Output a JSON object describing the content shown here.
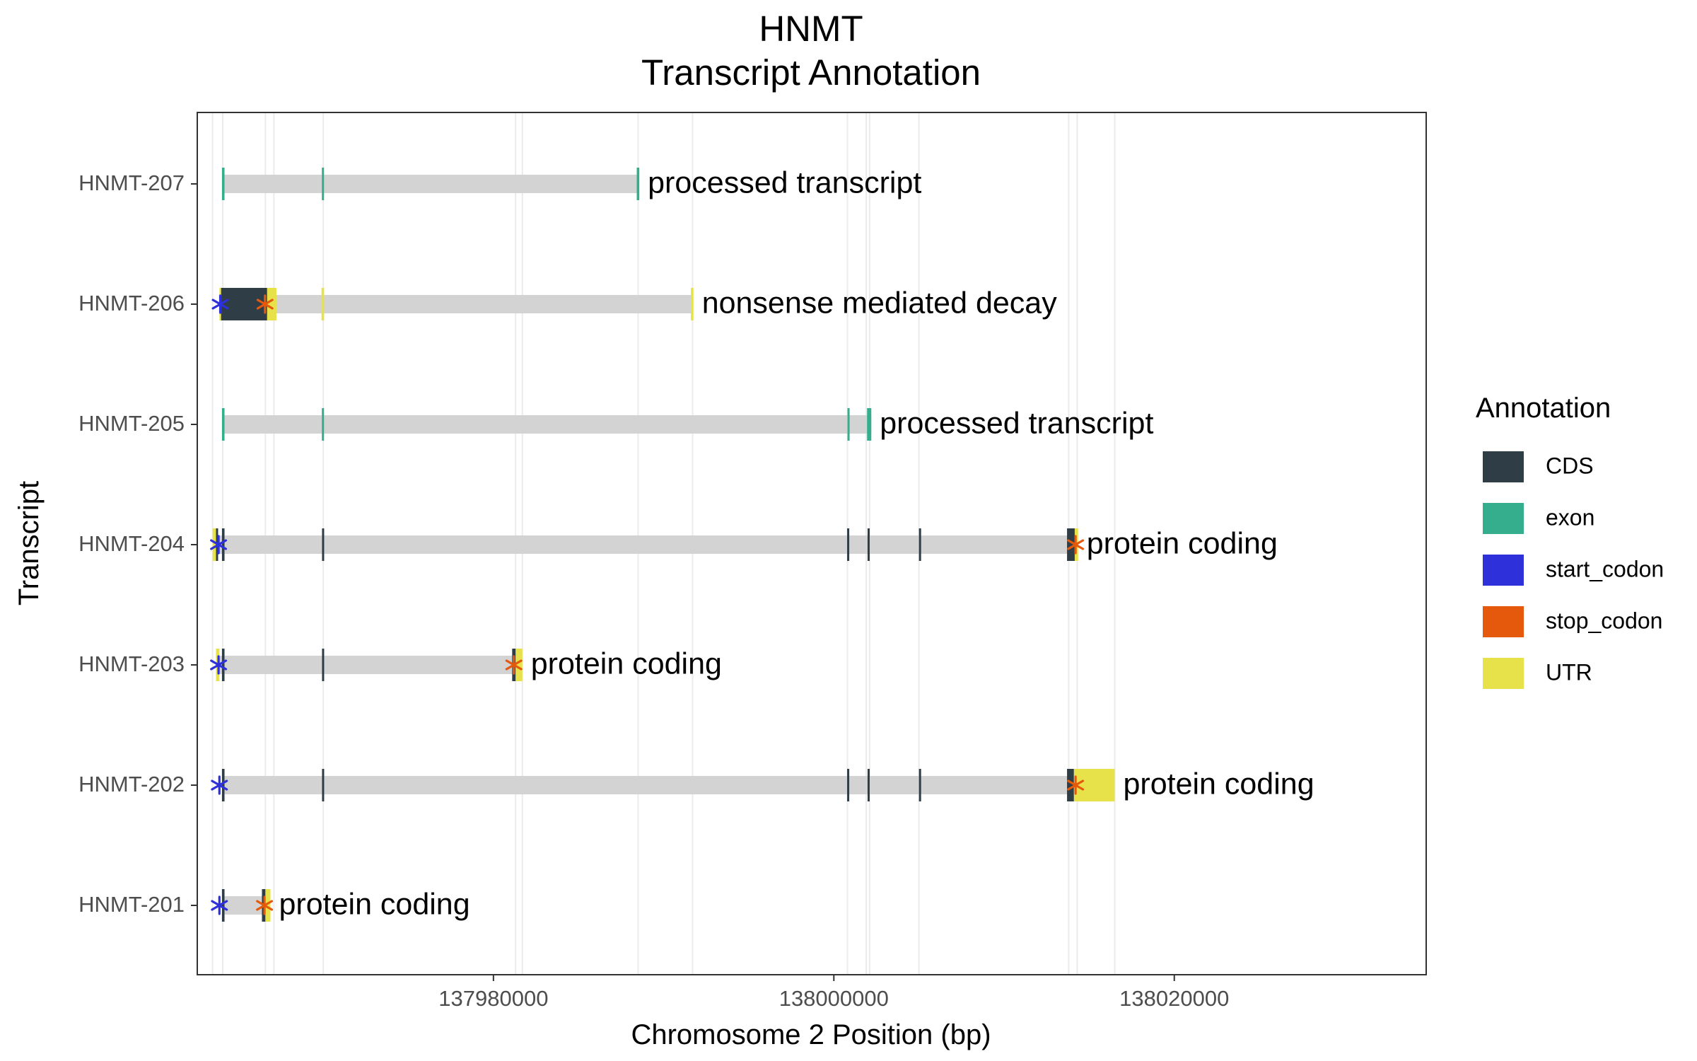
{
  "chart_data": {
    "type": "gene-track",
    "title": [
      "HNMT",
      "Transcript Annotation"
    ],
    "xlabel": "Chromosome 2 Position (bp)",
    "ylabel": "Transcript",
    "xlim": [
      137962600,
      138034800
    ],
    "x_ticks": [
      137980000,
      138000000,
      138020000
    ],
    "x_tick_labels": [
      "137980000",
      "138000000",
      "138020000"
    ],
    "legend": {
      "title": "Annotation",
      "position": "right",
      "items": [
        {
          "label": "CDS",
          "color": "#2F3D46"
        },
        {
          "label": "exon",
          "color": "#35AE8D"
        },
        {
          "label": "start_codon",
          "color": "#2E30DA"
        },
        {
          "label": "stop_codon",
          "color": "#E5590D"
        },
        {
          "label": "UTR",
          "color": "#E8E24A"
        }
      ]
    },
    "colors": {
      "CDS": "#2F3D46",
      "exon": "#35AE8D",
      "start_codon": "#2E30DA",
      "stop_codon": "#E5590D",
      "UTR": "#E8E24A",
      "intron": "#D3D3D3",
      "guide": "#EBEBEB"
    },
    "guides": [
      137963500,
      137964100,
      137966600,
      137967100,
      137970000,
      137988500,
      137991700,
      137981300,
      137981700,
      138000800,
      138001900,
      138002100,
      138005000,
      138013800,
      138014300,
      138016500
    ],
    "transcripts": [
      {
        "name": "HNMT-207",
        "biotype": "processed transcript",
        "start": 137964100,
        "end": 137988500,
        "features": [
          {
            "type": "exon",
            "start": 137964050,
            "end": 137964200
          },
          {
            "type": "exon",
            "start": 137969920,
            "end": 137970000
          },
          {
            "type": "exon",
            "start": 137988420,
            "end": 137988570
          }
        ]
      },
      {
        "name": "HNMT-206",
        "biotype": "nonsense mediated decay",
        "start": 137964100,
        "end": 137991700,
        "features": [
          {
            "type": "UTR",
            "start": 137963900,
            "end": 137964000
          },
          {
            "type": "CDS",
            "start": 137964000,
            "end": 137966700
          },
          {
            "type": "UTR",
            "start": 137966700,
            "end": 137967250
          },
          {
            "type": "UTR",
            "start": 137969900,
            "end": 137970050
          },
          {
            "type": "UTR",
            "start": 137991600,
            "end": 137991750
          },
          {
            "type": "start_codon",
            "start": 137963950,
            "end": 137963950
          },
          {
            "type": "stop_codon",
            "start": 137966580,
            "end": 137966580
          }
        ]
      },
      {
        "name": "HNMT-205",
        "biotype": "processed transcript",
        "start": 137964100,
        "end": 138002200,
        "features": [
          {
            "type": "exon",
            "start": 137964050,
            "end": 137964200
          },
          {
            "type": "exon",
            "start": 137969920,
            "end": 137970000
          },
          {
            "type": "exon",
            "start": 138000800,
            "end": 138000880
          },
          {
            "type": "exon",
            "start": 138001950,
            "end": 138002200
          }
        ]
      },
      {
        "name": "HNMT-204",
        "biotype": "protein coding",
        "start": 137963600,
        "end": 138014000,
        "features": [
          {
            "type": "UTR",
            "start": 137963500,
            "end": 137963700
          },
          {
            "type": "CDS",
            "start": 137963700,
            "end": 137963800
          },
          {
            "type": "CDS",
            "start": 137964050,
            "end": 137964200
          },
          {
            "type": "CDS",
            "start": 137969930,
            "end": 137970030
          },
          {
            "type": "CDS",
            "start": 138000780,
            "end": 138000880
          },
          {
            "type": "CDS",
            "start": 138001980,
            "end": 138002080
          },
          {
            "type": "CDS",
            "start": 138005000,
            "end": 138005100
          },
          {
            "type": "CDS",
            "start": 138013700,
            "end": 138014150
          },
          {
            "type": "UTR",
            "start": 138014150,
            "end": 138014350
          },
          {
            "type": "start_codon",
            "start": 137963850,
            "end": 137963850
          },
          {
            "type": "stop_codon",
            "start": 138014200,
            "end": 138014200
          }
        ]
      },
      {
        "name": "HNMT-203",
        "biotype": "protein coding",
        "start": 137963800,
        "end": 137981300,
        "features": [
          {
            "type": "UTR",
            "start": 137963700,
            "end": 137963900
          },
          {
            "type": "CDS",
            "start": 137964050,
            "end": 137964200
          },
          {
            "type": "CDS",
            "start": 137969930,
            "end": 137970030
          },
          {
            "type": "CDS",
            "start": 137981100,
            "end": 137981300
          },
          {
            "type": "UTR",
            "start": 137981300,
            "end": 137981700
          },
          {
            "type": "start_codon",
            "start": 137963850,
            "end": 137963850
          },
          {
            "type": "stop_codon",
            "start": 137981200,
            "end": 137981200
          }
        ]
      },
      {
        "name": "HNMT-202",
        "biotype": "protein coding",
        "start": 137964100,
        "end": 138013800,
        "features": [
          {
            "type": "CDS",
            "start": 137964050,
            "end": 137964200
          },
          {
            "type": "CDS",
            "start": 137969930,
            "end": 137970030
          },
          {
            "type": "CDS",
            "start": 138000780,
            "end": 138000880
          },
          {
            "type": "CDS",
            "start": 138001980,
            "end": 138002080
          },
          {
            "type": "CDS",
            "start": 138005000,
            "end": 138005100
          },
          {
            "type": "CDS",
            "start": 138013700,
            "end": 138014100
          },
          {
            "type": "UTR",
            "start": 138014100,
            "end": 138016500
          },
          {
            "type": "start_codon",
            "start": 137963900,
            "end": 137963900
          },
          {
            "type": "stop_codon",
            "start": 138014200,
            "end": 138014200
          }
        ]
      },
      {
        "name": "HNMT-201",
        "biotype": "protein coding",
        "start": 137964100,
        "end": 137966600,
        "features": [
          {
            "type": "CDS",
            "start": 137964050,
            "end": 137964200
          },
          {
            "type": "CDS",
            "start": 137966400,
            "end": 137966600
          },
          {
            "type": "UTR",
            "start": 137966600,
            "end": 137966900
          },
          {
            "type": "start_codon",
            "start": 137963900,
            "end": 137963900
          },
          {
            "type": "stop_codon",
            "start": 137966550,
            "end": 137966550
          }
        ]
      }
    ]
  }
}
